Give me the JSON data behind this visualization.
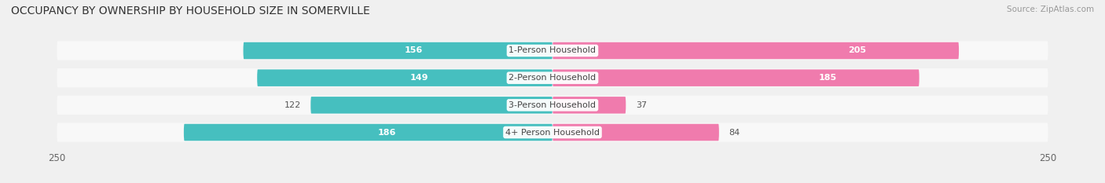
{
  "title": "OCCUPANCY BY OWNERSHIP BY HOUSEHOLD SIZE IN SOMERVILLE",
  "source": "Source: ZipAtlas.com",
  "categories": [
    "1-Person Household",
    "2-Person Household",
    "3-Person Household",
    "4+ Person Household"
  ],
  "owner_values": [
    156,
    149,
    122,
    186
  ],
  "renter_values": [
    205,
    185,
    37,
    84
  ],
  "owner_color": "#46BFBF",
  "renter_color": "#F07BAD",
  "renter_light_color": "#F7AECE",
  "axis_max": 250,
  "bg_color": "#f0f0f0",
  "bar_bg_color": "#e0e0e0",
  "row_bg_color": "#f8f8f8",
  "title_fontsize": 10,
  "label_fontsize": 8,
  "value_fontsize": 8,
  "axis_fontsize": 8.5,
  "legend_fontsize": 8.5,
  "bar_height": 0.62,
  "owner_threshold": 140,
  "renter_threshold": 140
}
